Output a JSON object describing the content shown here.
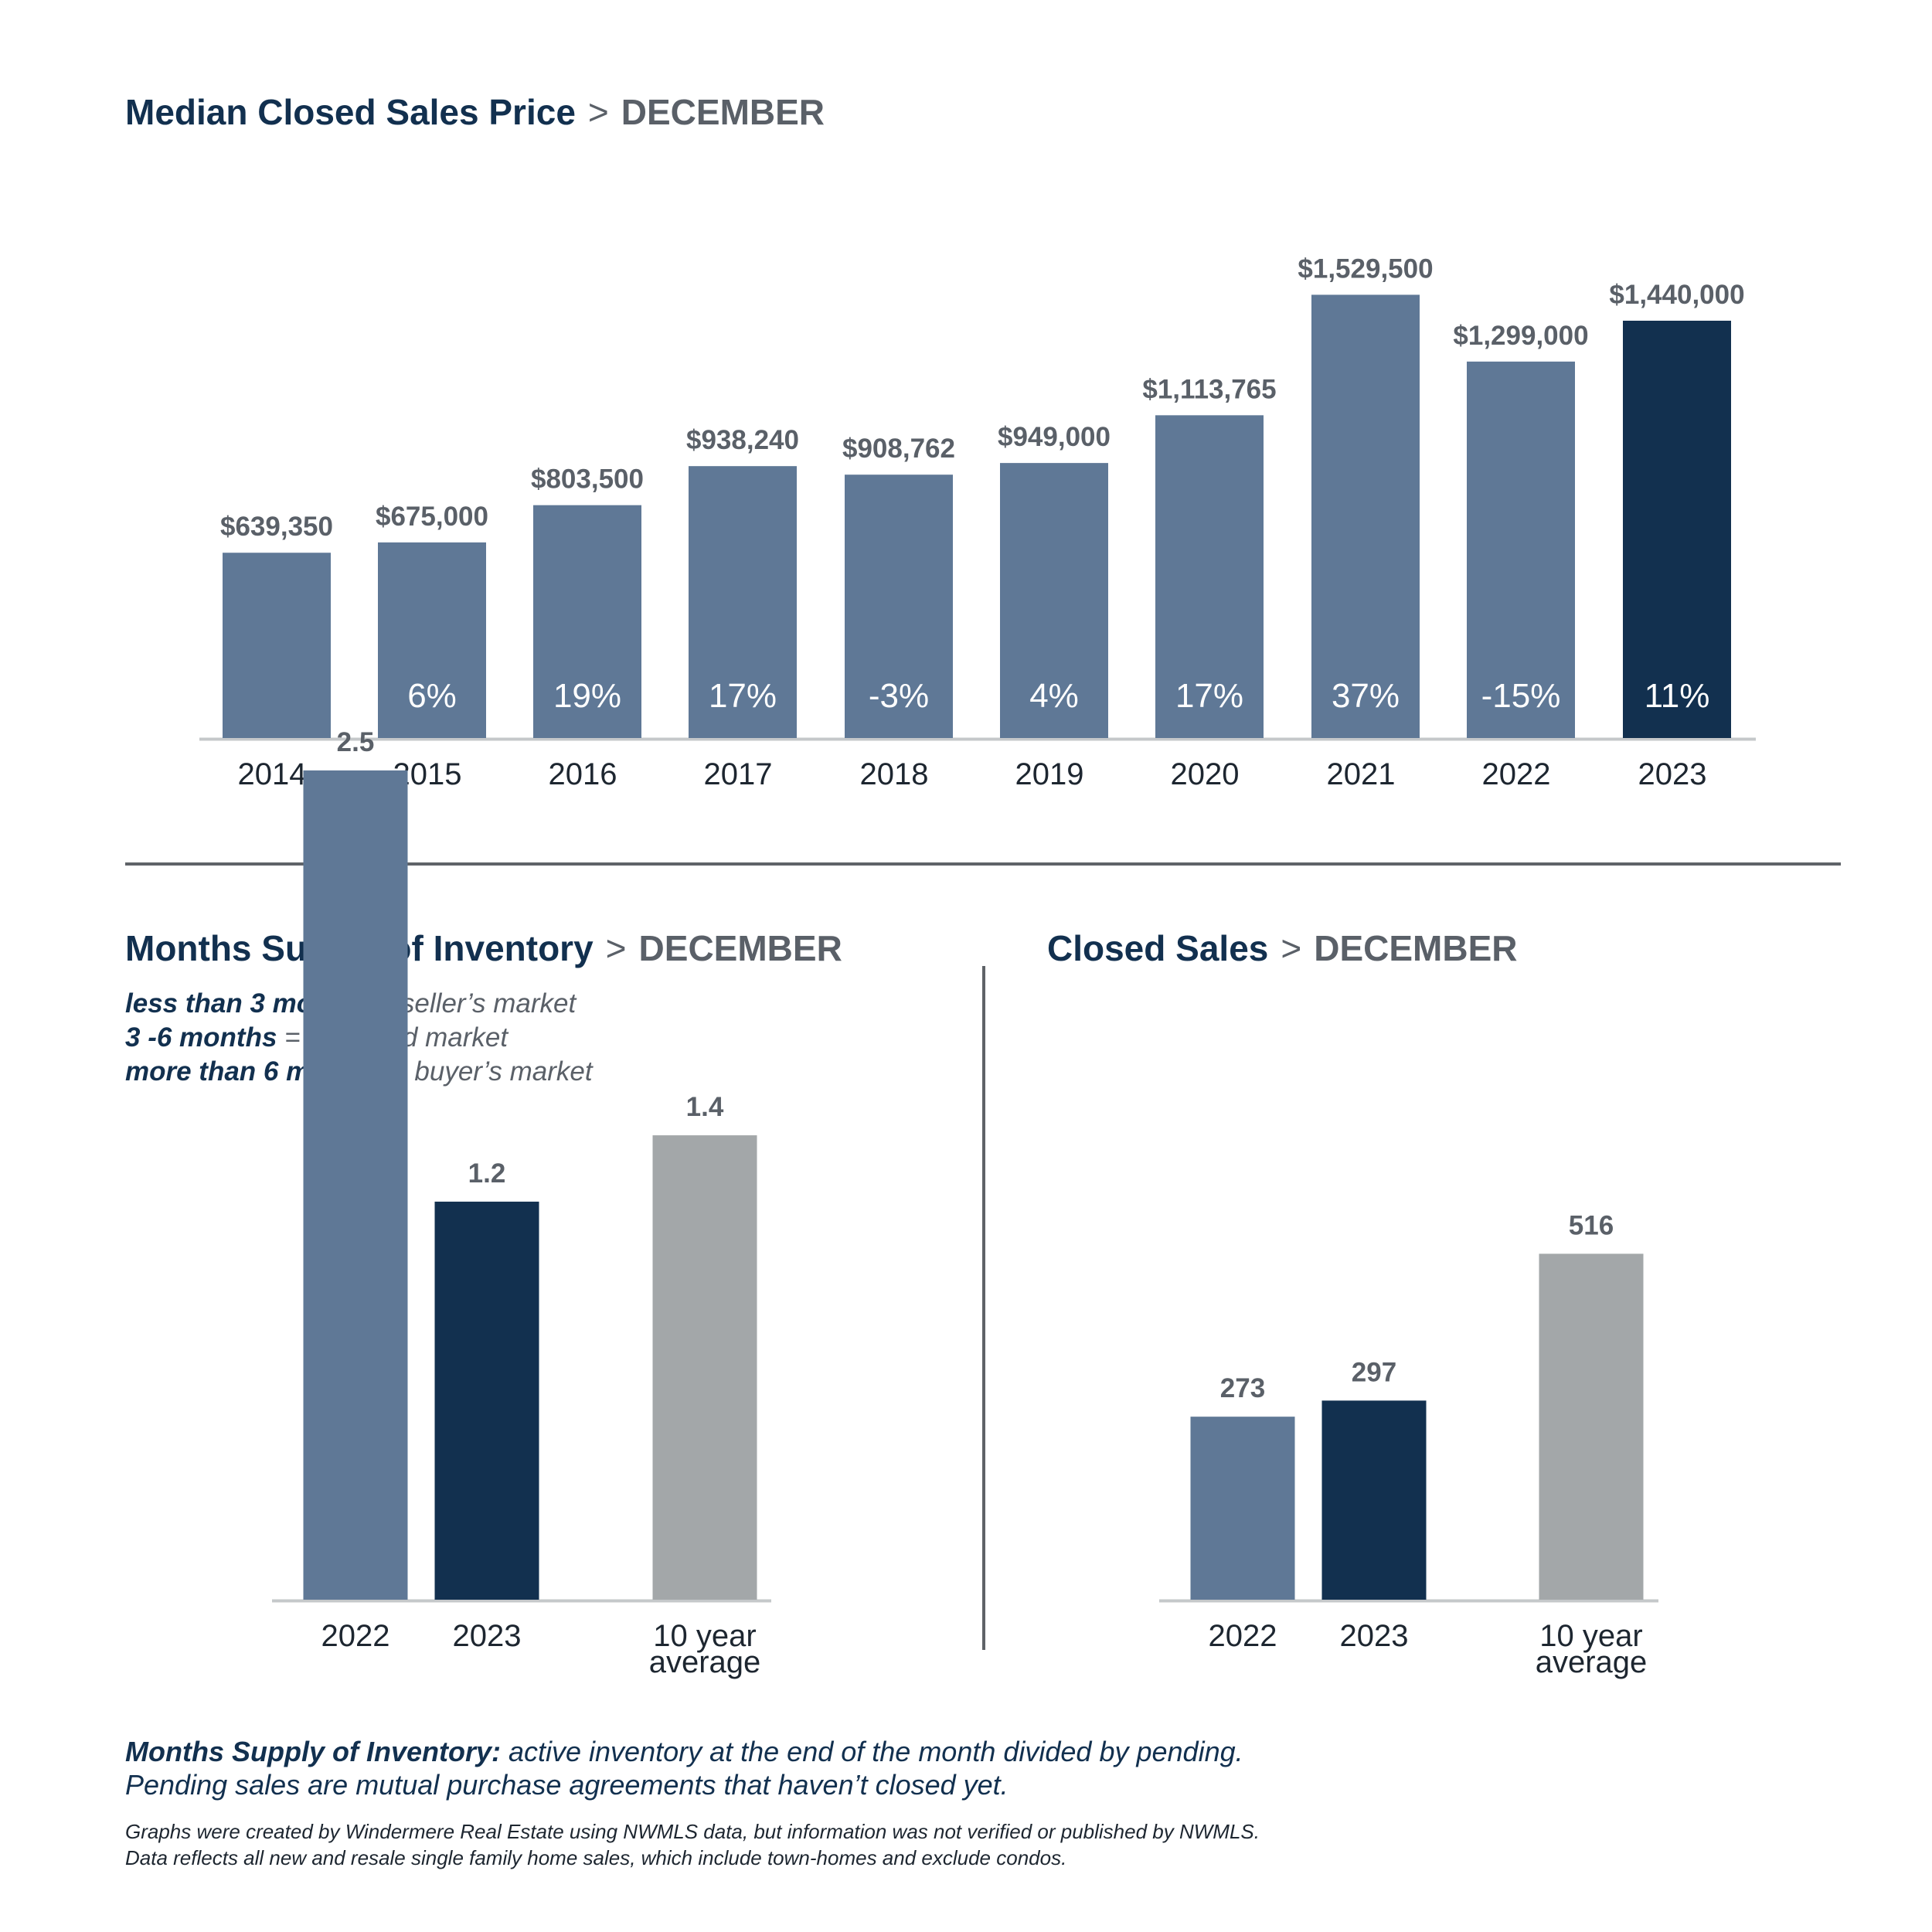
{
  "colors": {
    "navy": "#12304f",
    "slate": "#5f7896",
    "gray": "#a3a7a9",
    "axis": "#c5c8ca",
    "text": "#5a6068",
    "dark": "#1d2630"
  },
  "titles": {
    "price": {
      "main": "Median Closed Sales Price",
      "sep": ">",
      "sub": "DECEMBER"
    },
    "inventory": {
      "main": "Months Supply of Inventory",
      "sep": ">",
      "sub": "DECEMBER"
    },
    "sales": {
      "main": "Closed Sales",
      "sep": ">",
      "sub": "DECEMBER"
    }
  },
  "legend": [
    {
      "key": "less than 3 months",
      "value": "= seller’s market"
    },
    {
      "key": "3 -6 months",
      "value": "= balanced market"
    },
    {
      "key": "more than 6 months",
      "value": "= buyer’s market"
    }
  ],
  "notes": {
    "definition_label": "Months Supply of Inventory:",
    "definition_text": " active inventory at the end of the month divided by pending.",
    "definition_line2": "Pending sales are mutual purchase agreements that haven’t closed yet.",
    "fine1": "Graphs were created by Windermere Real Estate using NWMLS data, but information was not verified or published by NWMLS.",
    "fine2": "Data reflects all new and resale single family home sales, which include town-homes and exclude condos."
  },
  "chart_data": [
    {
      "type": "bar",
      "title": "Median Closed Sales Price > DECEMBER",
      "categories": [
        "2014",
        "2015",
        "2016",
        "2017",
        "2018",
        "2019",
        "2020",
        "2021",
        "2022",
        "2023"
      ],
      "values": [
        639350,
        675000,
        803500,
        938240,
        908762,
        949000,
        1113765,
        1529500,
        1299000,
        1440000
      ],
      "value_labels": [
        "$639,350",
        "$675,000",
        "$803,500",
        "$938,240",
        "$908,762",
        "$949,000",
        "$1,113,765",
        "$1,529,500",
        "$1,299,000",
        "$1,440,000"
      ],
      "change_labels": [
        "",
        "6%",
        "19%",
        "17%",
        "-3%",
        "4%",
        "17%",
        "37%",
        "-15%",
        "11%"
      ],
      "highlight": "2023",
      "ylim": [
        0,
        1600000
      ]
    },
    {
      "type": "bar",
      "title": "Months Supply of Inventory > DECEMBER",
      "categories": [
        "2022",
        "2023",
        "10 year average"
      ],
      "category_lines": [
        [
          "2022"
        ],
        [
          "2023"
        ],
        [
          "10 year",
          "average"
        ]
      ],
      "values": [
        2.5,
        1.2,
        1.4
      ],
      "value_labels": [
        "2.5",
        "1.2",
        "1.4"
      ],
      "bar_colors": [
        "slate",
        "navy",
        "gray"
      ],
      "ylim": [
        0,
        2.6
      ]
    },
    {
      "type": "bar",
      "title": "Closed Sales > DECEMBER",
      "categories": [
        "2022",
        "2023",
        "10 year average"
      ],
      "category_lines": [
        [
          "2022"
        ],
        [
          "2023"
        ],
        [
          "10 year",
          "average"
        ]
      ],
      "values": [
        273,
        297,
        516
      ],
      "value_labels": [
        "273",
        "297",
        "516"
      ],
      "bar_colors": [
        "slate",
        "navy",
        "gray"
      ],
      "ylim": [
        0,
        800
      ]
    }
  ]
}
